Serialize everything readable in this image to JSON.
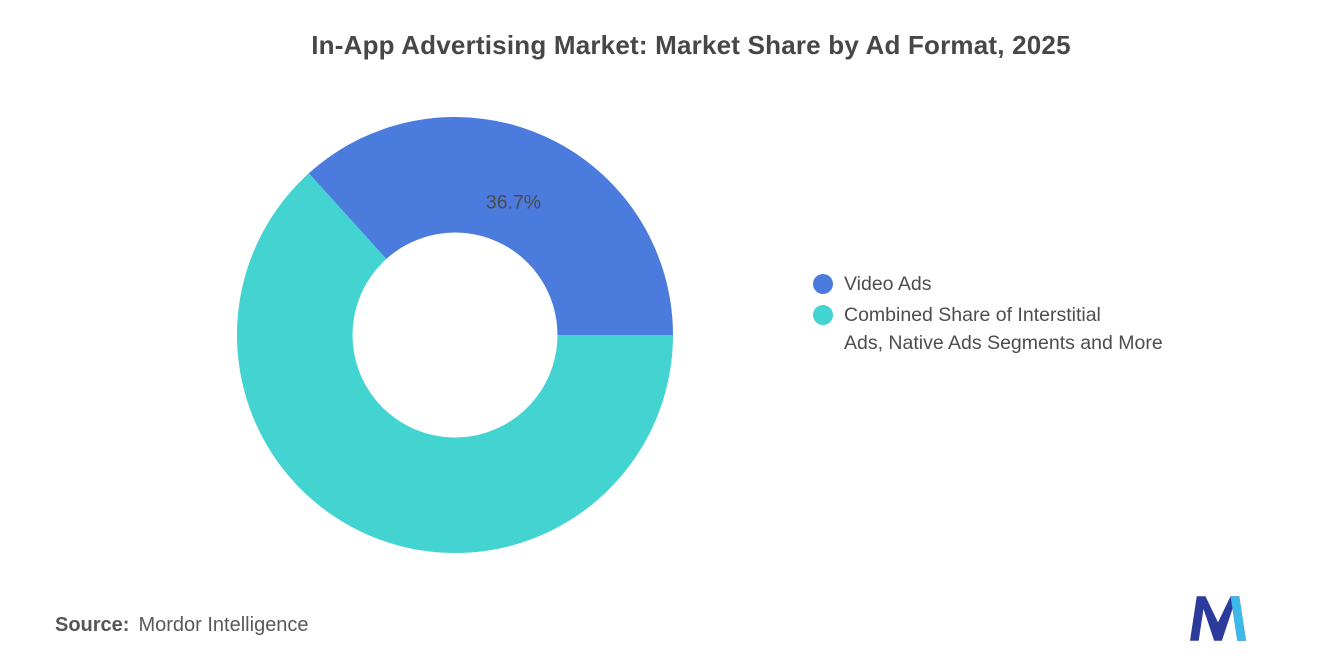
{
  "chart_data": {
    "type": "pie",
    "subtype": "donut",
    "title": "In-App Advertising Market: Market Share by Ad Format, 2025",
    "slices": [
      {
        "label": "Video Ads",
        "label_lines": [
          "Video Ads"
        ],
        "value": 36.7,
        "data_label": "36.7%",
        "color": "#4C7BDE"
      },
      {
        "label": "Combined Share of Interstitial Ads, Native Ads Segments and More",
        "label_lines": [
          "Combined Share of Interstitial",
          "Ads, Native Ads Segments and More"
        ],
        "value": 63.3,
        "data_label": "",
        "color": "#43D3D1"
      }
    ],
    "start_angle_deg": -42.12,
    "direction": "clockwise",
    "donut_hole_ratio": 0.47,
    "legend_position": "right",
    "data_label_color": "#4a4a4a",
    "background_color": "#ffffff"
  },
  "source": {
    "label": "Source:",
    "value": "Mordor Intelligence"
  },
  "icons": {
    "logo": "mordor-intelligence-logo"
  },
  "logo_colors": {
    "primary": "#2B3A9B",
    "accent": "#3EB8E8"
  }
}
